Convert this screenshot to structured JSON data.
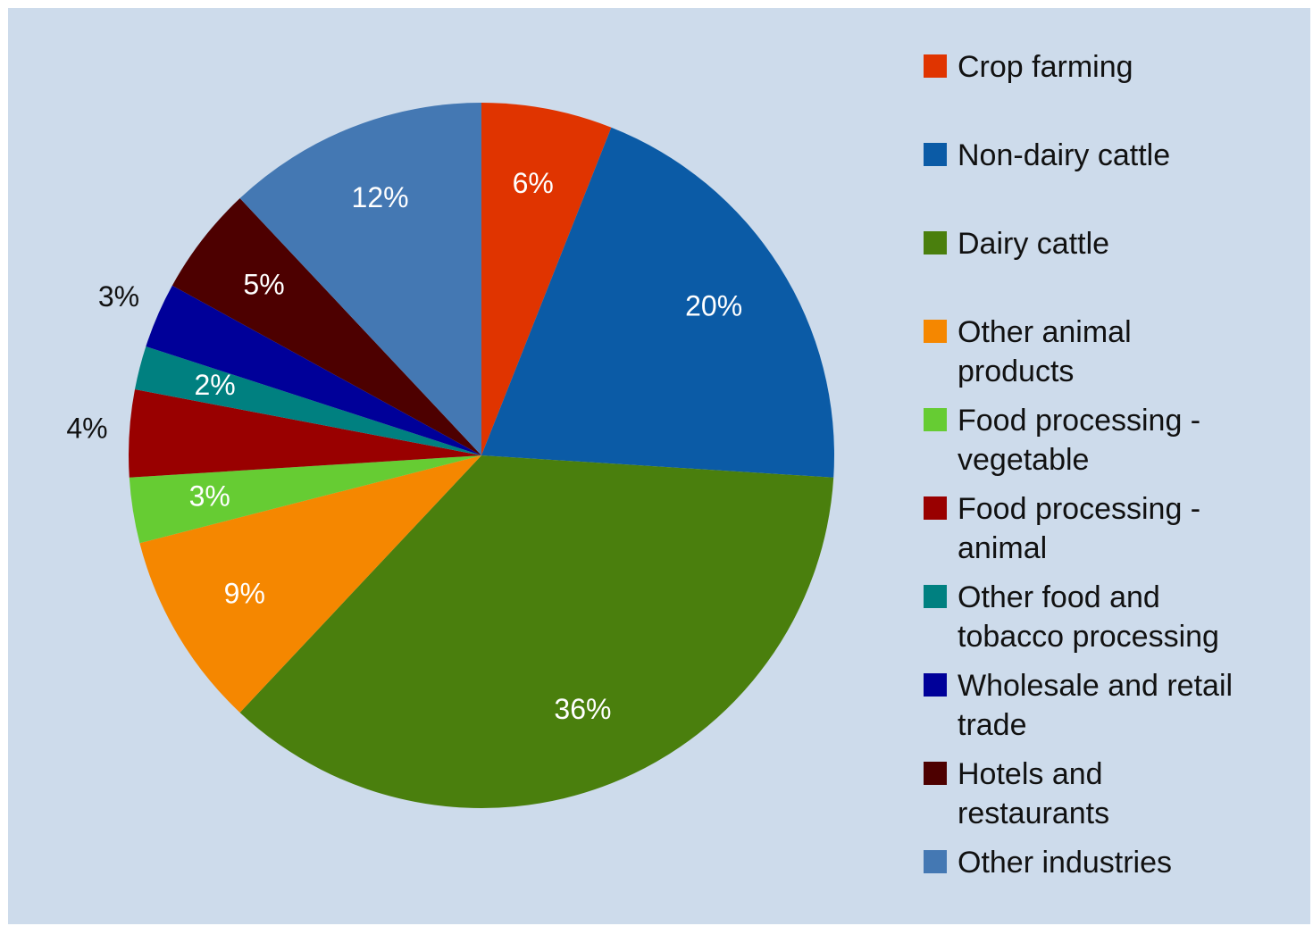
{
  "chart_data": {
    "type": "pie",
    "slices": [
      {
        "name": "Crop farming",
        "value": 6,
        "label": "6%",
        "color": "#e03400"
      },
      {
        "name": "Non-dairy cattle",
        "value": 20,
        "label": "20%",
        "color": "#0b5ba6"
      },
      {
        "name": "Dairy cattle",
        "value": 36,
        "label": "36%",
        "color": "#4a7f0d"
      },
      {
        "name": "Other animal products",
        "value": 9,
        "label": "9%",
        "color": "#f58700"
      },
      {
        "name": "Food processing - vegetable",
        "value": 3,
        "label": "3%",
        "color": "#66cc33"
      },
      {
        "name": "Food processing - animal",
        "value": 4,
        "label": "4%",
        "color": "#990000"
      },
      {
        "name": "Other food and tobacco processing",
        "value": 2,
        "label": "2%",
        "color": "#008080"
      },
      {
        "name": "Wholesale and retail trade",
        "value": 3,
        "label": "3%",
        "color": "#000099"
      },
      {
        "name": "Hotels and restaurants",
        "value": 5,
        "label": "5%",
        "color": "#4d0000"
      },
      {
        "name": "Other industries",
        "value": 12,
        "label": "12%",
        "color": "#4478b3"
      }
    ],
    "legend_position": "right"
  },
  "legend": {
    "items": [
      {
        "label": "Crop farming",
        "color": "#e03400"
      },
      {
        "label": "Non-dairy cattle",
        "color": "#0b5ba6"
      },
      {
        "label": "Dairy cattle",
        "color": "#4a7f0d"
      },
      {
        "label": "Other animal\nproducts",
        "color": "#f58700"
      },
      {
        "label": "Food processing -\nvegetable",
        "color": "#66cc33"
      },
      {
        "label": "Food processing -\nanimal",
        "color": "#990000"
      },
      {
        "label": "Other food and\ntobacco processing",
        "color": "#008080"
      },
      {
        "label": "Wholesale and retail\ntrade",
        "color": "#000099"
      },
      {
        "label": "Hotels and\nrestaurants",
        "color": "#4d0000"
      },
      {
        "label": "Other industries",
        "color": "#4478b3"
      }
    ]
  }
}
